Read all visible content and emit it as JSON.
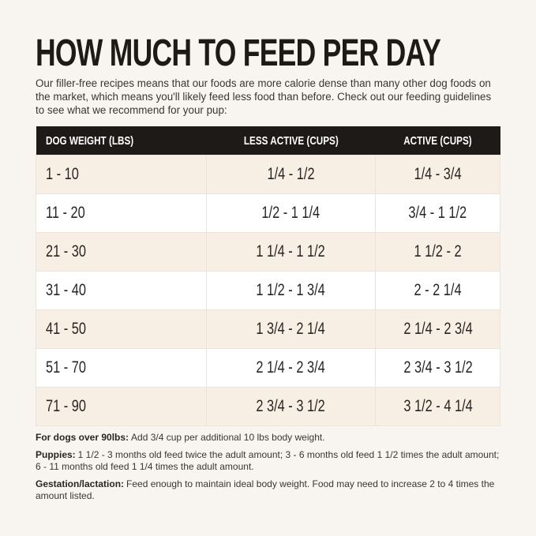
{
  "header": {
    "title": "HOW MUCH TO FEED PER DAY",
    "intro": "Our filler-free recipes means that our foods are more calorie dense than many other dog foods on the market, which means you'll likely feed less food than before. Check out our feeding guidelines to see what we recommend for your pup:"
  },
  "table": {
    "headers": [
      "DOG WEIGHT (LBS)",
      "LESS ACTIVE (CUPS)",
      "ACTIVE (CUPS)"
    ],
    "rows": [
      [
        "1 - 10",
        "1/4 - 1/2",
        "1/4 - 3/4"
      ],
      [
        "11 - 20",
        "1/2 - 1 1/4",
        "3/4 - 1 1/2"
      ],
      [
        "21 - 30",
        "1 1/4 - 1 1/2",
        "1 1/2 - 2"
      ],
      [
        "31 - 40",
        "1 1/2 - 1 3/4",
        "2 - 2 1/4"
      ],
      [
        "41 - 50",
        "1 3/4 - 2 1/4",
        "2 1/4 - 2 3/4"
      ],
      [
        "51 - 70",
        "2 1/4 - 2 3/4",
        "2 3/4 - 3 1/2"
      ],
      [
        "71 - 90",
        "2 3/4 - 3 1/2",
        "3 1/2 - 4 1/4"
      ]
    ]
  },
  "notes": [
    {
      "label": "For dogs over 90lbs:",
      "text": "Add 3/4 cup per additional 10 lbs body weight."
    },
    {
      "label": "Puppies:",
      "text": "1 1/2 - 3 months old feed twice the adult amount; 3 - 6 months old feed 1 1/2 times the adult amount; 6 - 11 months old feed 1 1/4 times the adult amount."
    },
    {
      "label": "Gestation/lactation:",
      "text": "Feed enough to maintain ideal body weight. Food may need to increase 2 to 4 times the amount listed."
    }
  ]
}
